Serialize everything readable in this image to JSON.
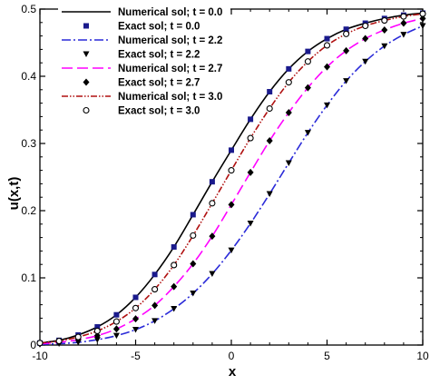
{
  "chart_data": {
    "type": "line",
    "title": "",
    "xlabel": "x",
    "ylabel": "u(x,t)",
    "xlim": [
      -10,
      10
    ],
    "ylim": [
      0,
      0.5
    ],
    "xticks": [
      -10,
      -5,
      0,
      5,
      10
    ],
    "xtick_labels": [
      "-10",
      "-5",
      "0",
      "5",
      "10"
    ],
    "yticks": [
      0,
      0.1,
      0.2,
      0.3,
      0.4,
      0.5
    ],
    "ytick_labels": [
      "0",
      "0.1",
      "0.2",
      "0.3",
      "0.4",
      "0.5"
    ],
    "grid": false,
    "legend_position": "top-center",
    "x_sample": [
      -10,
      -9,
      -8,
      -7,
      -6,
      -5,
      -4,
      -3,
      -2,
      -1,
      0,
      1,
      2,
      3,
      4,
      5,
      6,
      7,
      8,
      9,
      10
    ],
    "series": [
      {
        "name": "Numerical sol; t = 0.0",
        "kind": "line",
        "color": "#000000",
        "dash": "solid",
        "y": [
          0.003,
          0.007,
          0.015,
          0.027,
          0.045,
          0.071,
          0.105,
          0.146,
          0.194,
          0.243,
          0.29,
          0.336,
          0.377,
          0.411,
          0.437,
          0.456,
          0.47,
          0.479,
          0.486,
          0.491,
          0.494
        ]
      },
      {
        "name": "Exact sol; t = 0.0",
        "kind": "marker",
        "marker": "square",
        "color": "#1a1a8c",
        "y": [
          0.003,
          0.007,
          0.015,
          0.027,
          0.045,
          0.071,
          0.105,
          0.146,
          0.194,
          0.243,
          0.29,
          0.336,
          0.377,
          0.411,
          0.437,
          0.456,
          0.47,
          0.479,
          0.486,
          0.491,
          0.494
        ]
      },
      {
        "name": "Numerical sol; t = 2.2",
        "kind": "line",
        "color": "#2a2ad8",
        "dash": "dashdot",
        "y": [
          0.001,
          0.002,
          0.004,
          0.008,
          0.014,
          0.023,
          0.036,
          0.054,
          0.077,
          0.106,
          0.141,
          0.181,
          0.225,
          0.271,
          0.316,
          0.357,
          0.393,
          0.422,
          0.445,
          0.462,
          0.475
        ]
      },
      {
        "name": "Exact sol; t = 2.2",
        "kind": "marker",
        "marker": "triangle-down",
        "color": "#000000",
        "y": [
          0.001,
          0.002,
          0.004,
          0.008,
          0.014,
          0.023,
          0.036,
          0.054,
          0.077,
          0.106,
          0.141,
          0.181,
          0.225,
          0.271,
          0.316,
          0.357,
          0.393,
          0.422,
          0.445,
          0.462,
          0.475
        ]
      },
      {
        "name": "Numerical sol; t = 2.7",
        "kind": "line",
        "color": "#ff00ff",
        "dash": "longdash",
        "y": [
          0.002,
          0.004,
          0.008,
          0.014,
          0.024,
          0.039,
          0.059,
          0.087,
          0.121,
          0.162,
          0.209,
          0.257,
          0.304,
          0.346,
          0.383,
          0.414,
          0.438,
          0.456,
          0.469,
          0.479,
          0.486
        ]
      },
      {
        "name": "Exact sol; t = 2.7",
        "kind": "marker",
        "marker": "diamond",
        "color": "#000000",
        "y": [
          0.002,
          0.004,
          0.008,
          0.014,
          0.024,
          0.039,
          0.059,
          0.087,
          0.121,
          0.162,
          0.209,
          0.257,
          0.304,
          0.346,
          0.383,
          0.414,
          0.438,
          0.456,
          0.469,
          0.479,
          0.486
        ]
      },
      {
        "name": "Numerical sol; t = 3.0",
        "kind": "line",
        "color": "#b01010",
        "dash": "dashdotdot",
        "y": [
          0.003,
          0.006,
          0.012,
          0.021,
          0.035,
          0.055,
          0.083,
          0.119,
          0.163,
          0.211,
          0.26,
          0.308,
          0.352,
          0.391,
          0.422,
          0.446,
          0.463,
          0.475,
          0.483,
          0.489,
          0.493
        ]
      },
      {
        "name": "Exact sol; t = 3.0",
        "kind": "marker",
        "marker": "circle",
        "color": "#000000",
        "y": [
          0.003,
          0.006,
          0.012,
          0.021,
          0.035,
          0.055,
          0.083,
          0.119,
          0.163,
          0.211,
          0.26,
          0.308,
          0.352,
          0.391,
          0.422,
          0.446,
          0.463,
          0.475,
          0.483,
          0.489,
          0.493
        ]
      }
    ]
  }
}
